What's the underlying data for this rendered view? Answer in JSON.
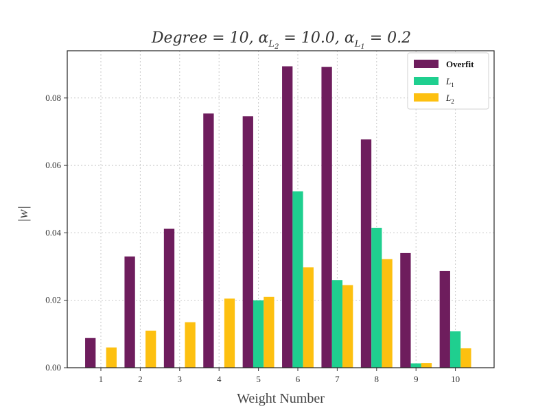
{
  "chart_data": {
    "type": "bar",
    "title": "Degree = 10, α_L2 = 10.0, α_L1 = 0.2",
    "title_parts": {
      "degree_prefix": "Degree = 10, α",
      "l2_sub": "L",
      "l2_subsub": "2",
      "l2_value": " = 10.0, α",
      "l1_sub": "L",
      "l1_subsub": "1",
      "l1_value": " = 0.2"
    },
    "xlabel": "Weight Number",
    "ylabel": "|w|",
    "categories": [
      "1",
      "2",
      "3",
      "4",
      "5",
      "6",
      "7",
      "8",
      "9",
      "10"
    ],
    "ylim": [
      0,
      0.094
    ],
    "yticks": [
      "0.00",
      "0.02",
      "0.04",
      "0.06",
      "0.08"
    ],
    "ytick_values": [
      0.0,
      0.02,
      0.04,
      0.06,
      0.08
    ],
    "grid": true,
    "legend_position": "top-right",
    "series": [
      {
        "name": "Overfit",
        "color": "#6e1d5d",
        "values": [
          0.0088,
          0.033,
          0.0412,
          0.0754,
          0.0746,
          0.0894,
          0.0892,
          0.0677,
          0.034,
          0.0287
        ]
      },
      {
        "name": "L1",
        "name_base": "L",
        "name_sub": "1",
        "color": "#1fcf8f",
        "values": [
          0.0,
          0.0,
          0.0,
          0.0,
          0.02,
          0.0523,
          0.026,
          0.0415,
          0.0013,
          0.0108
        ]
      },
      {
        "name": "L2",
        "name_base": "L",
        "name_sub": "2",
        "color": "#fdc010",
        "values": [
          0.006,
          0.011,
          0.0135,
          0.0205,
          0.021,
          0.0298,
          0.0245,
          0.0322,
          0.0014,
          0.0058
        ]
      }
    ]
  }
}
